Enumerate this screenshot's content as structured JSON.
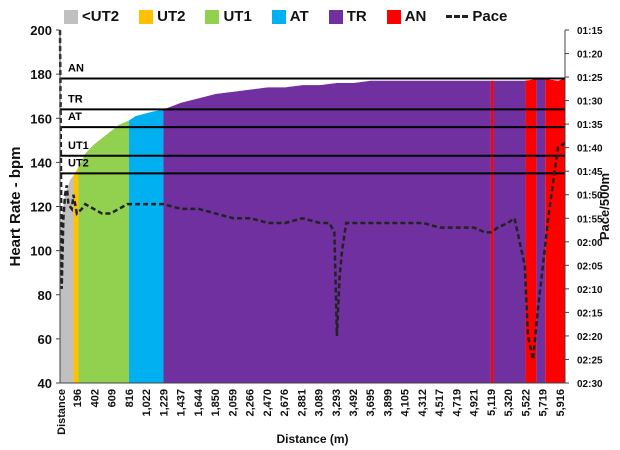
{
  "chart_data": {
    "type": "area",
    "title": "",
    "xlabel": "Distance (m)",
    "ylabel": "Heart Rate - bpm",
    "y2label": "Pace/500m",
    "xlim": [
      0,
      6000
    ],
    "ylim": [
      40,
      200
    ],
    "yticks": [
      40,
      60,
      80,
      100,
      120,
      140,
      160,
      180,
      200
    ],
    "y2ticks": [
      "01:15",
      "01:20",
      "01:25",
      "01:30",
      "01:35",
      "01:40",
      "01:45",
      "01:50",
      "01:55",
      "02:00",
      "02:05",
      "02:10",
      "02:15",
      "02:20",
      "02:25",
      "02:30"
    ],
    "y2lim_seconds": [
      75,
      150
    ],
    "xticks": [
      "196",
      "402",
      "609",
      "816",
      "1,022",
      "1,229",
      "1,437",
      "1,644",
      "1,850",
      "2,059",
      "2,266",
      "2,470",
      "2,676",
      "2,881",
      "3,089",
      "3,293",
      "3,492",
      "3,695",
      "3,899",
      "4,105",
      "4,312",
      "4,517",
      "4,719",
      "4,921",
      "5,119",
      "5,320",
      "5,522",
      "5,719",
      "5,916"
    ],
    "x_first_label": "Distance",
    "zone_lines": [
      {
        "label": "AN",
        "hr": 178
      },
      {
        "label": "TR",
        "hr": 164
      },
      {
        "label": "AT",
        "hr": 156
      },
      {
        "label": "UT1",
        "hr": 143
      },
      {
        "label": "UT2",
        "hr": 135
      }
    ],
    "zones": [
      {
        "name": "<UT2",
        "color": "#c0c0c0",
        "from": 0,
        "to": 160
      },
      {
        "name": "UT2",
        "color": "#ffc000",
        "from": 160,
        "to": 220
      },
      {
        "name": "UT1",
        "color": "#92d050",
        "from": 220,
        "to": 820
      },
      {
        "name": "AT",
        "color": "#00b0f0",
        "from": 820,
        "to": 1229
      },
      {
        "name": "TR",
        "color": "#7030a0",
        "from": 1229,
        "to": 5120
      },
      {
        "name": "AN",
        "color": "#ff0000",
        "from": 5120,
        "to": 5150
      },
      {
        "name": "TR",
        "color": "#7030a0",
        "from": 5150,
        "to": 5530
      },
      {
        "name": "AN",
        "color": "#ff0000",
        "from": 5530,
        "to": 5660
      },
      {
        "name": "TR",
        "color": "#7030a0",
        "from": 5660,
        "to": 5765
      },
      {
        "name": "AN",
        "color": "#ff0000",
        "from": 5765,
        "to": 6000
      }
    ],
    "heart_rate": {
      "x": [
        0,
        60,
        120,
        160,
        220,
        300,
        400,
        500,
        600,
        700,
        820,
        900,
        1000,
        1100,
        1229,
        1300,
        1437,
        1644,
        1850,
        2059,
        2266,
        2470,
        2676,
        2881,
        3089,
        3293,
        3492,
        3695,
        3899,
        4105,
        4312,
        4517,
        4719,
        4921,
        5119,
        5320,
        5522,
        5719,
        5916,
        6000
      ],
      "y": [
        110,
        125,
        132,
        134,
        138,
        144,
        148,
        151,
        154,
        157,
        159,
        161,
        162,
        163,
        164,
        165,
        167,
        169,
        171,
        172,
        173,
        174,
        174,
        175,
        175,
        176,
        176,
        177,
        177,
        177,
        177,
        177,
        177,
        177,
        177,
        177,
        177,
        178,
        177,
        178
      ]
    },
    "pace": {
      "name": "Pace",
      "x": [
        0,
        10,
        20,
        40,
        60,
        80,
        100,
        140,
        160,
        200,
        260,
        300,
        400,
        500,
        600,
        700,
        800,
        900,
        1000,
        1100,
        1229,
        1437,
        1644,
        1850,
        2059,
        2266,
        2470,
        2676,
        2881,
        3089,
        3200,
        3260,
        3290,
        3320,
        3350,
        3400,
        3492,
        3695,
        3899,
        4105,
        4312,
        4517,
        4719,
        4921,
        5050,
        5119,
        5200,
        5320,
        5400,
        5522,
        5560,
        5620,
        5680,
        5719,
        5800,
        5916,
        6000
      ],
      "y_seconds": [
        75,
        100,
        130,
        115,
        110,
        108,
        112,
        113,
        110,
        114,
        113,
        112,
        113,
        114,
        114,
        113,
        112,
        112,
        112,
        112,
        112,
        113,
        113,
        114,
        115,
        115,
        116,
        116,
        115,
        116,
        116,
        118,
        140,
        128,
        122,
        116,
        116,
        116,
        116,
        116,
        116,
        117,
        117,
        117,
        118,
        118,
        117,
        116,
        115,
        125,
        140,
        145,
        134,
        128,
        115,
        100,
        99
      ]
    },
    "legend": [
      "<UT2",
      "UT2",
      "UT1",
      "AT",
      "TR",
      "AN",
      "Pace"
    ],
    "legend_position": "top"
  }
}
